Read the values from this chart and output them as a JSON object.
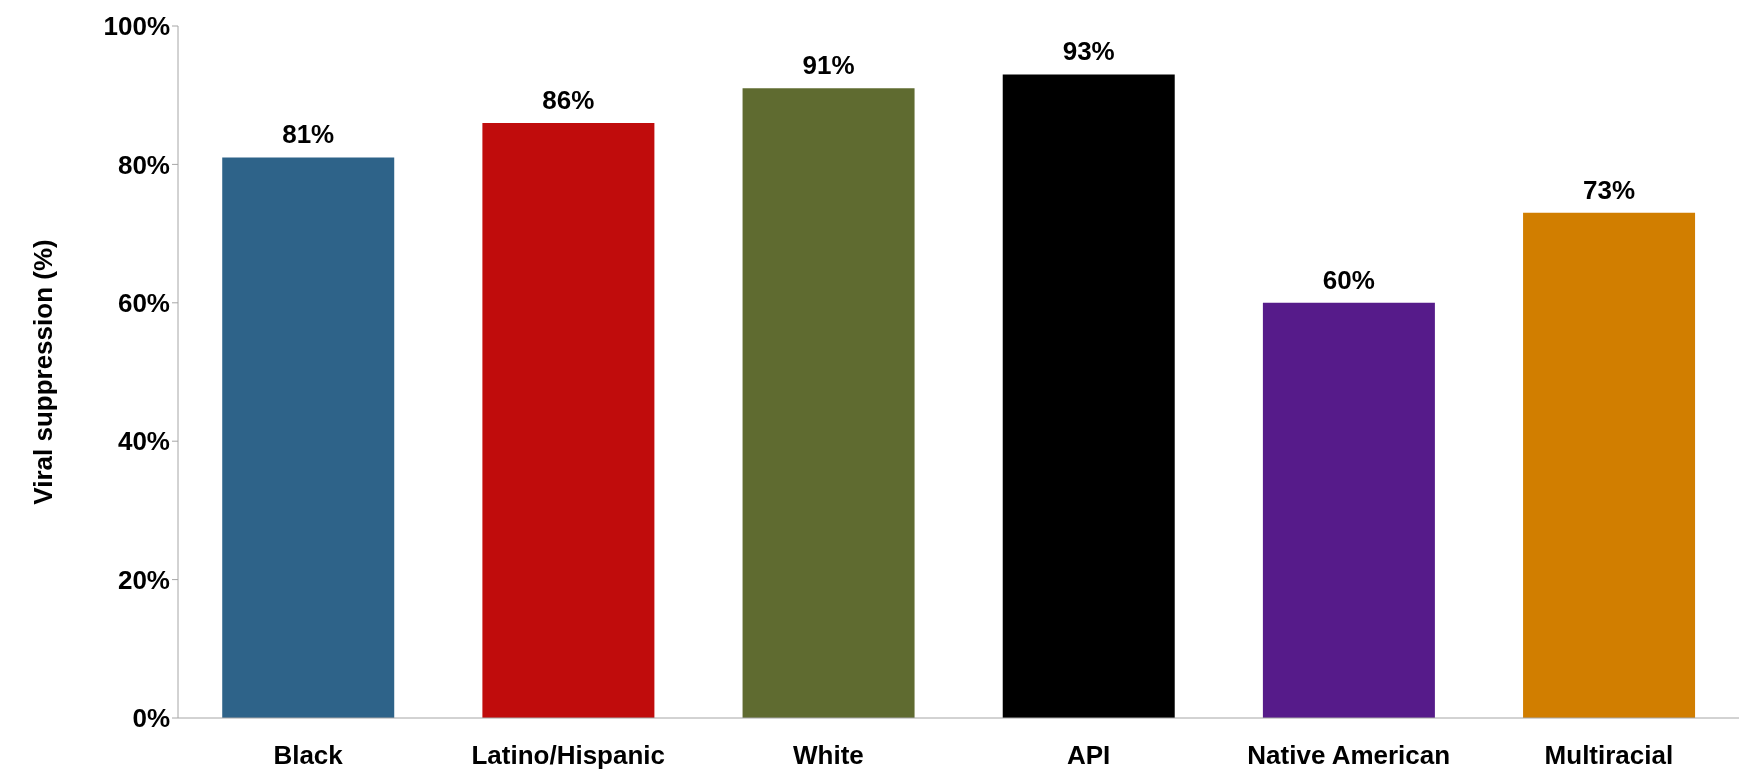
{
  "chart_data": {
    "type": "bar",
    "ylabel": "Viral suppression (%)",
    "categories": [
      "Black",
      "Latino/Hispanic",
      "White",
      "API",
      "Native American",
      "Multiracial"
    ],
    "values": [
      81,
      86,
      91,
      93,
      60,
      73
    ],
    "colors": [
      "#2e6389",
      "#c00c0c",
      "#5f6b30",
      "#000000",
      "#561b8a",
      "#d17e00"
    ],
    "value_labels": [
      "81%",
      "86%",
      "91%",
      "93%",
      "60%",
      "73%"
    ],
    "ylim": [
      0,
      100
    ],
    "yticks": [
      {
        "value": 0,
        "label": "0%"
      },
      {
        "value": 20,
        "label": "20%"
      },
      {
        "value": 40,
        "label": "40%"
      },
      {
        "value": 60,
        "label": "60%"
      },
      {
        "value": 80,
        "label": "80%"
      },
      {
        "value": 100,
        "label": "100%"
      }
    ],
    "grid": false,
    "legend": false
  }
}
